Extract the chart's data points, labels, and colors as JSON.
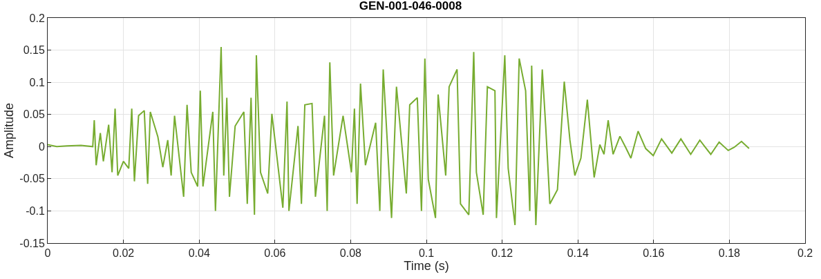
{
  "chart_data": {
    "type": "line",
    "title": "GEN-001-046-0008",
    "xlabel": "Time (s)",
    "ylabel": "Amplitude",
    "xlim": [
      0,
      0.2
    ],
    "xticks": [
      0,
      0.02,
      0.04,
      0.06,
      0.08,
      0.1,
      0.12,
      0.14,
      0.16,
      0.18,
      0.2
    ],
    "ylim": [
      -0.15,
      0.2
    ],
    "yticks": [
      -0.15,
      -0.1,
      -0.05,
      0,
      0.05,
      0.1,
      0.15,
      0.2
    ],
    "grid": true,
    "series": [
      {
        "color": "#77ac30",
        "x": [
          0,
          0.0024,
          0.0051,
          0.0088,
          0.0119,
          0.0123,
          0.0128,
          0.0139,
          0.0147,
          0.0161,
          0.017,
          0.0178,
          0.0185,
          0.02,
          0.0214,
          0.0222,
          0.0229,
          0.024,
          0.0255,
          0.0264,
          0.0271,
          0.0291,
          0.0304,
          0.0317,
          0.0326,
          0.0335,
          0.0359,
          0.0368,
          0.0379,
          0.0396,
          0.0403,
          0.041,
          0.0436,
          0.0443,
          0.0458,
          0.0465,
          0.0473,
          0.048,
          0.0495,
          0.0518,
          0.0527,
          0.0537,
          0.0546,
          0.0551,
          0.0562,
          0.0581,
          0.0592,
          0.0621,
          0.0632,
          0.0637,
          0.0661,
          0.067,
          0.0679,
          0.0698,
          0.0707,
          0.0731,
          0.0738,
          0.0745,
          0.0755,
          0.078,
          0.0802,
          0.081,
          0.0817,
          0.0826,
          0.0839,
          0.0866,
          0.0877,
          0.0886,
          0.0908,
          0.0921,
          0.0947,
          0.0956,
          0.0976,
          0.0987,
          0.0996,
          0.1005,
          0.1024,
          0.1031,
          0.1051,
          0.106,
          0.1081,
          0.109,
          0.1112,
          0.1125,
          0.1132,
          0.115,
          0.1161,
          0.1181,
          0.1185,
          0.1207,
          0.1216,
          0.1234,
          0.1245,
          0.1262,
          0.1273,
          0.1278,
          0.1289,
          0.1306,
          0.1315,
          0.1326,
          0.1346,
          0.1364,
          0.1379,
          0.1392,
          0.1408,
          0.1425,
          0.1443,
          0.1458,
          0.1469,
          0.148,
          0.1493,
          0.1511,
          0.1526,
          0.154,
          0.1559,
          0.1579,
          0.1599,
          0.1621,
          0.1648,
          0.1672,
          0.1698,
          0.1722,
          0.1751,
          0.1773,
          0.1797,
          0.1813,
          0.1832,
          0.1852
        ],
        "values": [
          0.003,
          0,
          0.001,
          0.002,
          0,
          0.041,
          -0.029,
          0.021,
          -0.023,
          0.034,
          -0.04,
          0.059,
          -0.045,
          -0.023,
          -0.034,
          0.059,
          -0.054,
          0.048,
          0.056,
          -0.058,
          0.054,
          0.015,
          -0.032,
          0.01,
          -0.045,
          0.048,
          -0.078,
          0.065,
          -0.04,
          -0.062,
          0.087,
          -0.062,
          0.054,
          -0.1,
          0.155,
          -0.045,
          0.076,
          -0.078,
          0.032,
          0.054,
          -0.089,
          0.076,
          -0.106,
          0.142,
          -0.04,
          -0.073,
          0.051,
          -0.095,
          0.07,
          -0.1,
          0.032,
          -0.089,
          0.065,
          0.067,
          -0.078,
          0.048,
          -0.1,
          0.131,
          -0.045,
          0.048,
          -0.04,
          0.059,
          -0.089,
          0.098,
          -0.029,
          0.037,
          -0.1,
          0.12,
          -0.111,
          0.093,
          -0.073,
          0.065,
          0.076,
          -0.1,
          0.137,
          -0.051,
          -0.111,
          0.081,
          -0.045,
          0.093,
          0.12,
          -0.089,
          -0.106,
          0.147,
          -0.04,
          -0.106,
          0.093,
          0.087,
          -0.111,
          0.142,
          -0.034,
          -0.122,
          0.137,
          0.087,
          -0.1,
          0.126,
          -0.122,
          0.12,
          0.032,
          -0.089,
          -0.067,
          0.101,
          0.01,
          -0.045,
          -0.018,
          0.073,
          -0.048,
          0.003,
          -0.012,
          0.041,
          -0.012,
          0.016,
          -0.001,
          -0.018,
          0.024,
          -0.003,
          -0.014,
          0.012,
          -0.01,
          0.012,
          -0.012,
          0.01,
          -0.012,
          0.007,
          -0.006,
          -0.001,
          0.008,
          -0.003
        ]
      }
    ]
  }
}
